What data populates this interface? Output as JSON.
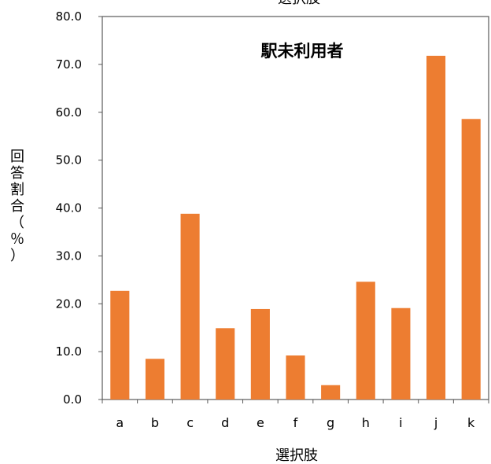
{
  "chart_data": {
    "type": "bar",
    "title": "駅未利用者",
    "top_label": "選択肢",
    "xlabel": "選択肢",
    "ylabel": "回答割合（％）",
    "ylim": [
      0,
      80
    ],
    "yticks": [
      "0.0",
      "10.0",
      "20.0",
      "30.0",
      "40.0",
      "50.0",
      "60.0",
      "70.0",
      "80.0"
    ],
    "categories": [
      "a",
      "b",
      "c",
      "d",
      "e",
      "f",
      "g",
      "h",
      "i",
      "j",
      "k"
    ],
    "values": [
      22.7,
      8.5,
      38.8,
      14.9,
      18.9,
      9.2,
      3.0,
      24.6,
      19.1,
      71.8,
      58.6
    ],
    "bar_color": "#ed7d31",
    "grid": false,
    "legend": "none"
  }
}
